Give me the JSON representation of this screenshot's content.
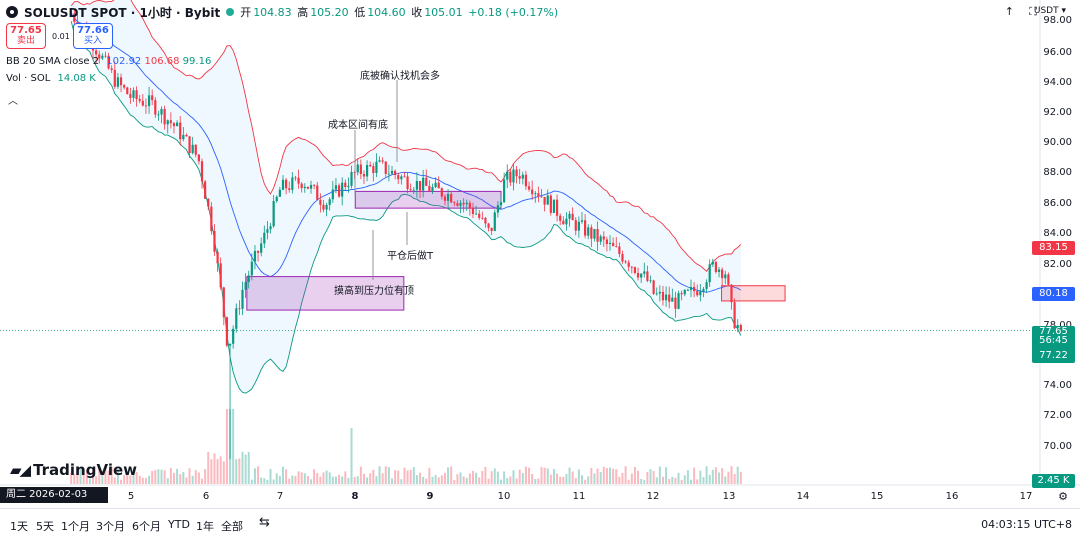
{
  "header": {
    "symbol": "SOLUSDT SPOT · 1小时 · Bybit",
    "open_label": "开",
    "open": "104.83",
    "high_label": "高",
    "high": "105.20",
    "low_label": "低",
    "low": "104.60",
    "close_label": "收",
    "close": "105.01",
    "change": "+0.18 (+0.17%)"
  },
  "trade": {
    "sell_price": "77.65",
    "sell_label": "卖出",
    "buy_price": "77.66",
    "buy_label": "买入",
    "spread": "0.01"
  },
  "indicators": {
    "bb_name": "BB 20 SMA close 2",
    "bb_basis": "102.92",
    "bb_upper": "106.68",
    "bb_lower": "99.16",
    "vol_name": "Vol · SOL",
    "vol_value": "14.08 K"
  },
  "annotations": {
    "a1": "底被确认找机会多",
    "a2": "成本区间有底",
    "a3": "平仓后做T",
    "a4": "摸高到压力位有顶"
  },
  "y_axis": {
    "currency": "USDT",
    "ticks": [
      "98.00",
      "96.00",
      "94.00",
      "92.00",
      "90.00",
      "88.00",
      "86.00",
      "84.00",
      "82.00",
      "78.00",
      "76.00",
      "74.00",
      "72.00",
      "70.00"
    ],
    "upper_badge": "83.15",
    "mid_badge": "80.18",
    "last_price": "77.65",
    "countdown": "56:45",
    "lower_badge": "77.22",
    "volume_badge": "2.45 K"
  },
  "x_axis": {
    "date_tag": "周二 2026-02-03   06:00",
    "ticks": [
      "5",
      "6",
      "7",
      "8",
      "9",
      "10",
      "11",
      "12",
      "13",
      "14",
      "15",
      "16",
      "17"
    ]
  },
  "brand": "TradingView",
  "toolbar": {
    "ranges": [
      "1天",
      "5天",
      "1个月",
      "3个月",
      "6个月",
      "YTD",
      "1年",
      "全部"
    ],
    "clock": "04:03:15 UTC+8"
  },
  "colors": {
    "up": "#089981",
    "down": "#f23645",
    "bb_upper": "#f23645",
    "bb_lower": "#089981",
    "bb_basis": "#2962ff",
    "zone_purple": "#9c27b0",
    "zone_red": "#f23645"
  },
  "chart_data": {
    "type": "candlestick",
    "interval": "1小时",
    "x_labels": [
      "5",
      "6",
      "7",
      "8",
      "9",
      "10",
      "11",
      "12",
      "13"
    ],
    "approx_close_path": [
      {
        "day": 4.2,
        "close": 98.5
      },
      {
        "day": 4.5,
        "close": 96.5
      },
      {
        "day": 4.8,
        "close": 94.0
      },
      {
        "day": 5.0,
        "close": 93.0
      },
      {
        "day": 5.3,
        "close": 92.5
      },
      {
        "day": 5.6,
        "close": 91.0
      },
      {
        "day": 5.9,
        "close": 89.0
      },
      {
        "day": 6.1,
        "close": 84.0
      },
      {
        "day": 6.3,
        "close": 76.5
      },
      {
        "day": 6.5,
        "close": 80.5
      },
      {
        "day": 6.8,
        "close": 84.0
      },
      {
        "day": 7.0,
        "close": 87.0
      },
      {
        "day": 7.3,
        "close": 87.5
      },
      {
        "day": 7.6,
        "close": 86.0
      },
      {
        "day": 8.0,
        "close": 88.0
      },
      {
        "day": 8.3,
        "close": 88.5
      },
      {
        "day": 8.7,
        "close": 87.5
      },
      {
        "day": 9.0,
        "close": 87.0
      },
      {
        "day": 9.3,
        "close": 86.5
      },
      {
        "day": 9.6,
        "close": 85.5
      },
      {
        "day": 9.8,
        "close": 84.0
      },
      {
        "day": 10.0,
        "close": 87.5
      },
      {
        "day": 10.2,
        "close": 88.0
      },
      {
        "day": 10.5,
        "close": 86.5
      },
      {
        "day": 10.8,
        "close": 85.0
      },
      {
        "day": 11.0,
        "close": 84.5
      },
      {
        "day": 11.3,
        "close": 83.5
      },
      {
        "day": 11.6,
        "close": 82.5
      },
      {
        "day": 11.9,
        "close": 81.0
      },
      {
        "day": 12.0,
        "close": 80.0
      },
      {
        "day": 12.3,
        "close": 79.5
      },
      {
        "day": 12.6,
        "close": 80.5
      },
      {
        "day": 12.8,
        "close": 82.0
      },
      {
        "day": 12.95,
        "close": 81.5
      },
      {
        "day": 13.05,
        "close": 78.5
      },
      {
        "day": 13.15,
        "close": 77.65
      }
    ],
    "ylim": [
      69,
      99
    ],
    "last_price": 77.65,
    "zones": [
      {
        "name": "purple-zone-1",
        "day_start": 6.55,
        "day_end": 8.65,
        "price_low": 79,
        "price_high": 81.2
      },
      {
        "name": "purple-zone-2",
        "day_start": 8.0,
        "day_end": 9.95,
        "price_low": 85.7,
        "price_high": 86.8
      },
      {
        "name": "red-zone",
        "day_start": 12.9,
        "day_end": 13.75,
        "price_low": 79.6,
        "price_high": 80.6
      }
    ],
    "grid": true,
    "legend": "top-left"
  }
}
